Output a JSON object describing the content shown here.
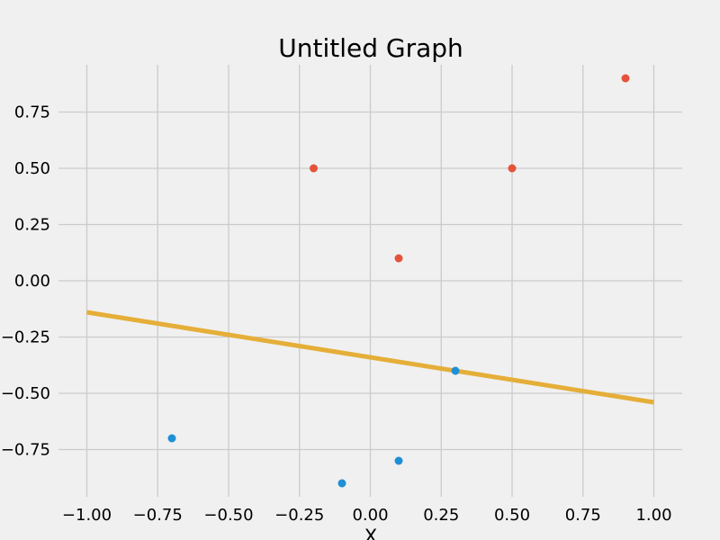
{
  "chart_data": {
    "type": "scatter",
    "title": "Untitled Graph",
    "xlabel": "X",
    "ylabel": "",
    "xlim": [
      -1.1,
      1.1
    ],
    "ylim": [
      -0.96,
      0.96
    ],
    "x_ticks": [
      -1.0,
      -0.75,
      -0.5,
      -0.25,
      0.0,
      0.25,
      0.5,
      0.75,
      1.0
    ],
    "y_ticks": [
      -0.75,
      -0.5,
      -0.25,
      0.0,
      0.25,
      0.5,
      0.75
    ],
    "x_tick_labels": [
      "−1.00",
      "−0.75",
      "−0.50",
      "−0.25",
      "0.00",
      "0.25",
      "0.50",
      "0.75",
      "1.00"
    ],
    "y_tick_labels": [
      "−0.75",
      "−0.50",
      "−0.25",
      "0.00",
      "0.25",
      "0.50",
      "0.75"
    ],
    "grid": true,
    "series": [
      {
        "kind": "scatter",
        "color": "#e5533b",
        "points": [
          [
            -0.2,
            0.5
          ],
          [
            0.1,
            0.1
          ],
          [
            0.5,
            0.5
          ],
          [
            0.9,
            0.9
          ]
        ]
      },
      {
        "kind": "scatter",
        "color": "#1f8fd6",
        "points": [
          [
            -0.7,
            -0.7
          ],
          [
            -0.1,
            -0.9
          ],
          [
            0.1,
            -0.8
          ],
          [
            0.3,
            -0.4
          ]
        ]
      },
      {
        "kind": "line",
        "color": "#e5ae38",
        "points": [
          [
            -1.0,
            -0.14
          ],
          [
            1.0,
            -0.54
          ]
        ]
      }
    ]
  }
}
